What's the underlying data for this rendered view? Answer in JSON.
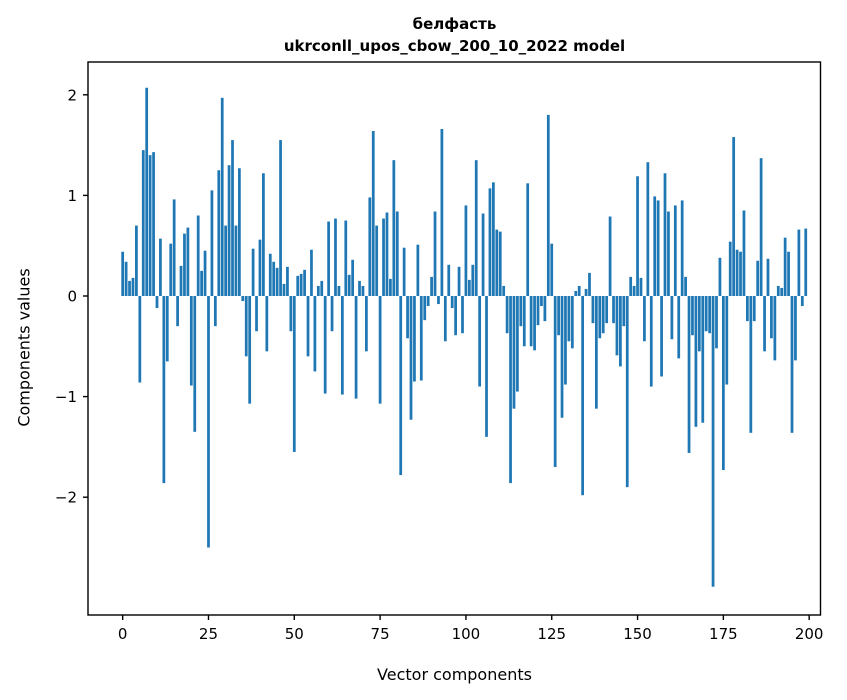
{
  "figure": {
    "background": "#ffffff",
    "title": "белфасть",
    "subtitle": "ukrconll_upos_cbow_200_10_2022 model",
    "xlabel": "Vector components",
    "ylabel": "Components values"
  },
  "chart_data": {
    "type": "bar",
    "title": "белфасть",
    "subtitle": "ukrconll_upos_cbow_200_10_2022 model",
    "xlabel": "Vector components",
    "ylabel": "Components values",
    "bar_color": "#1f77b4",
    "bar_width_data": 0.8,
    "grid": false,
    "legend_position": "none",
    "x_start": 0,
    "xticks": [
      0,
      25,
      50,
      75,
      100,
      125,
      150,
      175,
      200
    ],
    "yticks": [
      2,
      1,
      0,
      -1,
      -2
    ],
    "xlim": [
      -10.1,
      203.3
    ],
    "ylim": [
      -3.171,
      2.326
    ],
    "values": [
      0.44,
      0.34,
      0.15,
      0.18,
      0.7,
      -0.86,
      1.45,
      2.07,
      1.4,
      1.43,
      -0.12,
      0.57,
      -1.86,
      -0.65,
      0.52,
      0.96,
      -0.3,
      0.3,
      0.62,
      0.68,
      -0.89,
      -1.35,
      0.8,
      0.25,
      0.45,
      -2.5,
      1.05,
      -0.3,
      1.25,
      1.97,
      0.7,
      1.3,
      1.55,
      0.7,
      1.27,
      -0.05,
      -0.6,
      -1.07,
      0.47,
      -0.35,
      0.56,
      1.22,
      -0.55,
      0.42,
      0.34,
      0.28,
      1.55,
      0.12,
      0.29,
      -0.35,
      -1.55,
      0.2,
      0.22,
      0.26,
      -0.6,
      0.46,
      -0.75,
      0.1,
      0.15,
      -0.97,
      0.74,
      -0.35,
      0.77,
      0.1,
      -0.98,
      0.75,
      0.21,
      0.36,
      -1.02,
      0.15,
      0.1,
      -0.55,
      0.98,
      1.64,
      0.7,
      -1.07,
      0.77,
      0.83,
      0.17,
      1.35,
      0.84,
      -1.78,
      0.48,
      -0.42,
      -1.23,
      -0.85,
      0.51,
      -0.84,
      -0.24,
      -0.1,
      0.19,
      0.84,
      -0.08,
      1.66,
      -0.45,
      0.31,
      -0.12,
      -0.39,
      0.29,
      -0.37,
      0.9,
      0.16,
      0.31,
      1.35,
      -0.9,
      0.82,
      -1.4,
      1.07,
      1.13,
      0.66,
      0.64,
      0.1,
      -0.37,
      -1.86,
      -1.12,
      -0.95,
      -0.3,
      -0.5,
      1.12,
      -0.5,
      -0.54,
      -0.29,
      -0.1,
      -0.25,
      1.8,
      0.52,
      -1.7,
      -0.39,
      -1.21,
      -0.88,
      -0.45,
      -0.52,
      0.05,
      0.1,
      -1.98,
      0.07,
      0.23,
      -0.27,
      -1.12,
      -0.42,
      -0.37,
      -0.27,
      0.79,
      -0.27,
      -0.59,
      -0.7,
      -0.3,
      -1.9,
      0.19,
      0.1,
      1.19,
      0.18,
      -0.45,
      1.33,
      -0.9,
      0.99,
      0.95,
      -0.8,
      1.22,
      0.84,
      -0.43,
      0.9,
      -0.62,
      0.95,
      0.19,
      -1.56,
      -0.39,
      -1.3,
      -0.55,
      -1.26,
      -0.35,
      -0.37,
      -2.89,
      -0.52,
      0.38,
      -1.73,
      -0.88,
      0.54,
      1.58,
      0.46,
      0.44,
      0.85,
      -0.25,
      -1.36,
      -0.25,
      0.35,
      1.37,
      -0.55,
      0.37,
      -0.42,
      -0.64,
      0.1,
      0.08,
      0.58,
      0.44,
      -1.36,
      -0.64,
      0.66,
      -0.1,
      0.67
    ]
  }
}
